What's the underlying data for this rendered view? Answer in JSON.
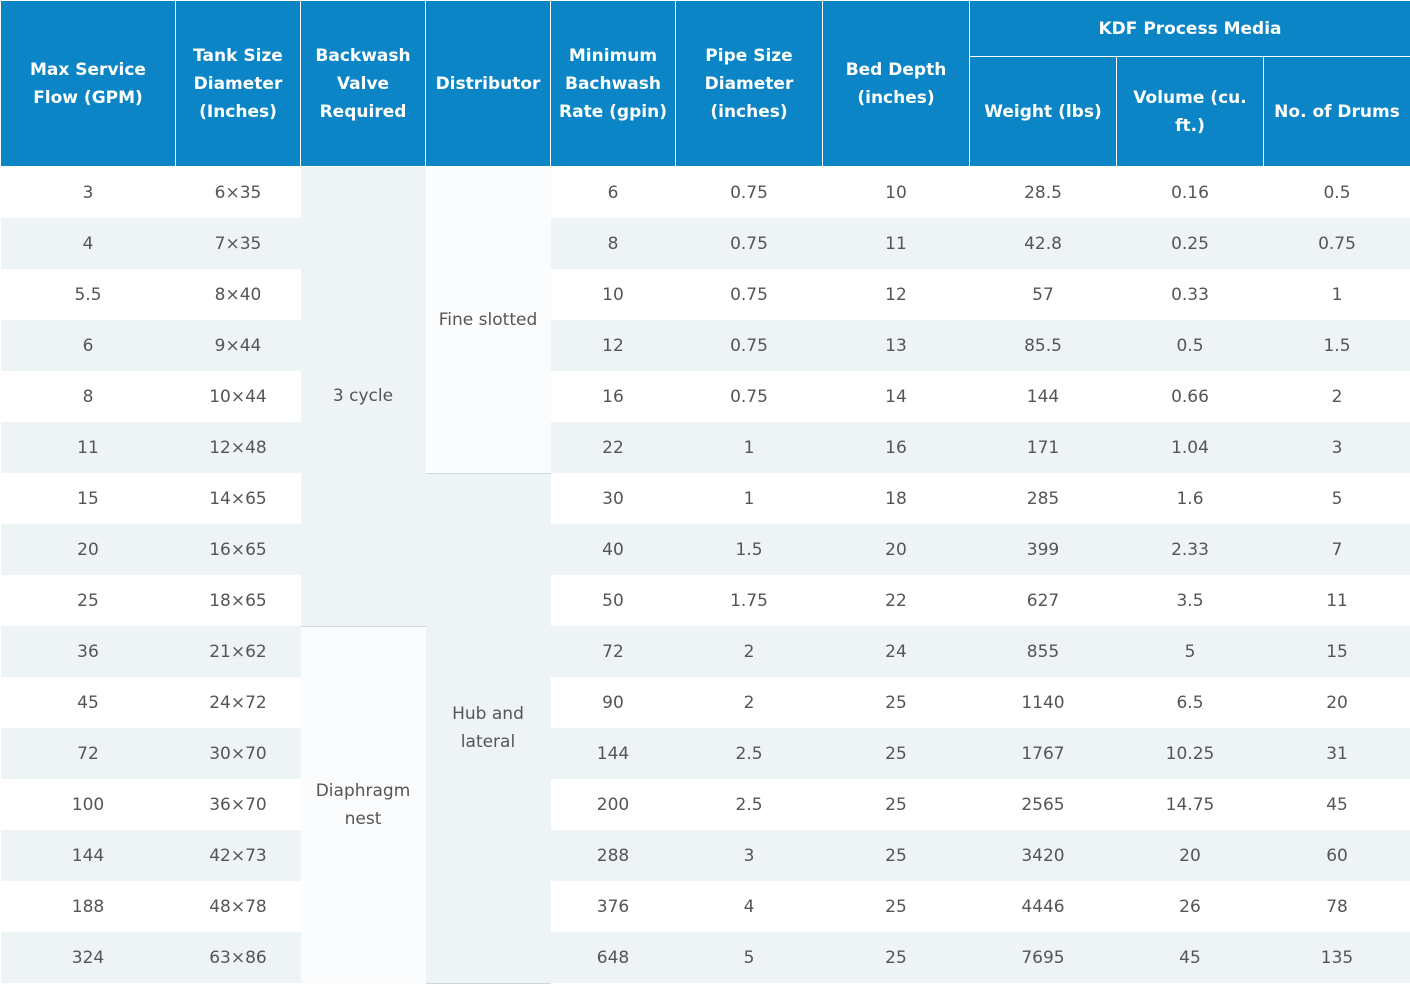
{
  "table": {
    "headers": {
      "max_service_flow": "Max Service Flow (GPM)",
      "tank_size": "Tank Size Diameter (Inches)",
      "backwash_valve": "Backwash Valve Required",
      "distributor": "Distributor",
      "min_backwash_rate": "Minimum Bachwash Rate (gpin)",
      "pipe_size": "Pipe Size Diameter (inches)",
      "bed_depth": "Bed Depth (inches)",
      "kdf_group": "KDF Process Media",
      "weight": "Weight (lbs)",
      "volume": "Volume (cu. ft.)",
      "drums": "No. of Drums"
    },
    "valve_groups": [
      {
        "label": "3 cycle",
        "rows": 9
      },
      {
        "label": "Diaphragm nest",
        "rows": 7
      }
    ],
    "distributor_groups": [
      {
        "label": "Fine slotted",
        "rows": 6
      },
      {
        "label": "Hub and lateral",
        "rows": 10
      }
    ],
    "rows": [
      {
        "flow": "3",
        "tank": "6×35",
        "rate": "6",
        "pipe": "0.75",
        "depth": "10",
        "weight": "28.5",
        "volume": "0.16",
        "drums": "0.5"
      },
      {
        "flow": "4",
        "tank": "7×35",
        "rate": "8",
        "pipe": "0.75",
        "depth": "11",
        "weight": "42.8",
        "volume": "0.25",
        "drums": "0.75"
      },
      {
        "flow": "5.5",
        "tank": "8×40",
        "rate": "10",
        "pipe": "0.75",
        "depth": "12",
        "weight": "57",
        "volume": "0.33",
        "drums": "1"
      },
      {
        "flow": "6",
        "tank": "9×44",
        "rate": "12",
        "pipe": "0.75",
        "depth": "13",
        "weight": "85.5",
        "volume": "0.5",
        "drums": "1.5"
      },
      {
        "flow": "8",
        "tank": "10×44",
        "rate": "16",
        "pipe": "0.75",
        "depth": "14",
        "weight": "144",
        "volume": "0.66",
        "drums": "2"
      },
      {
        "flow": "11",
        "tank": "12×48",
        "rate": "22",
        "pipe": "1",
        "depth": "16",
        "weight": "171",
        "volume": "1.04",
        "drums": "3"
      },
      {
        "flow": "15",
        "tank": "14×65",
        "rate": "30",
        "pipe": "1",
        "depth": "18",
        "weight": "285",
        "volume": "1.6",
        "drums": "5"
      },
      {
        "flow": "20",
        "tank": "16×65",
        "rate": "40",
        "pipe": "1.5",
        "depth": "20",
        "weight": "399",
        "volume": "2.33",
        "drums": "7"
      },
      {
        "flow": "25",
        "tank": "18×65",
        "rate": "50",
        "pipe": "1.75",
        "depth": "22",
        "weight": "627",
        "volume": "3.5",
        "drums": "11"
      },
      {
        "flow": "36",
        "tank": "21×62",
        "rate": "72",
        "pipe": "2",
        "depth": "24",
        "weight": "855",
        "volume": "5",
        "drums": "15"
      },
      {
        "flow": "45",
        "tank": "24×72",
        "rate": "90",
        "pipe": "2",
        "depth": "25",
        "weight": "1140",
        "volume": "6.5",
        "drums": "20"
      },
      {
        "flow": "72",
        "tank": "30×70",
        "rate": "144",
        "pipe": "2.5",
        "depth": "25",
        "weight": "1767",
        "volume": "10.25",
        "drums": "31"
      },
      {
        "flow": "100",
        "tank": "36×70",
        "rate": "200",
        "pipe": "2.5",
        "depth": "25",
        "weight": "2565",
        "volume": "14.75",
        "drums": "45"
      },
      {
        "flow": "144",
        "tank": "42×73",
        "rate": "288",
        "pipe": "3",
        "depth": "25",
        "weight": "3420",
        "volume": "20",
        "drums": "60"
      },
      {
        "flow": "188",
        "tank": "48×78",
        "rate": "376",
        "pipe": "4",
        "depth": "25",
        "weight": "4446",
        "volume": "26",
        "drums": "78"
      },
      {
        "flow": "324",
        "tank": "63×86",
        "rate": "648",
        "pipe": "5",
        "depth": "25",
        "weight": "7695",
        "volume": "45",
        "drums": "135"
      }
    ]
  }
}
